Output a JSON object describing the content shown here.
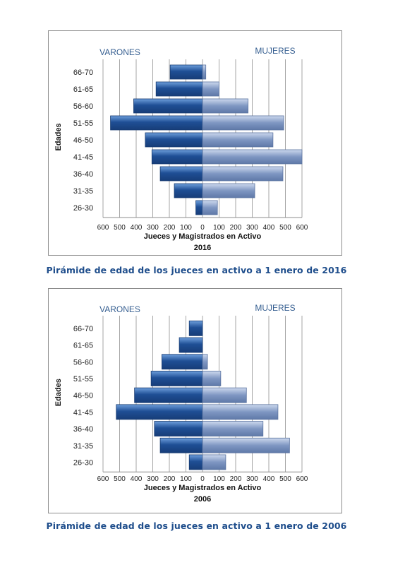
{
  "chart_data": [
    {
      "type": "bar",
      "orientation": "horizontal-pyramid",
      "categories": [
        "26-30",
        "31-35",
        "36-40",
        "41-45",
        "46-50",
        "51-55",
        "56-60",
        "61-65",
        "66-70"
      ],
      "series": [
        {
          "name": "VARONES",
          "values": [
            40,
            170,
            255,
            305,
            345,
            555,
            415,
            280,
            195
          ]
        },
        {
          "name": "MUJERES",
          "values": [
            90,
            315,
            485,
            600,
            425,
            490,
            275,
            100,
            20
          ]
        }
      ],
      "xlabel": "Jueces y Magistrados  en Activo",
      "subtitle": "2016",
      "ylabel": "Edades",
      "xlim": [
        -600,
        600
      ],
      "xticks": [
        "600",
        "500",
        "400",
        "300",
        "200",
        "100",
        "0",
        "100",
        "200",
        "300",
        "400",
        "500",
        "600"
      ],
      "grid": "vertical",
      "caption": "Pirámide de edad de los jueces en activo a 1 enero de 2016"
    },
    {
      "type": "bar",
      "orientation": "horizontal-pyramid",
      "categories": [
        "26-30",
        "31-35",
        "36-40",
        "41-45",
        "46-50",
        "51-55",
        "56-60",
        "61-65",
        "66-70"
      ],
      "series": [
        {
          "name": "VARONES",
          "values": [
            80,
            255,
            290,
            520,
            410,
            310,
            245,
            140,
            80
          ]
        },
        {
          "name": "MUJERES",
          "values": [
            140,
            525,
            365,
            455,
            265,
            110,
            30,
            0,
            0
          ]
        }
      ],
      "xlabel": "Jueces y Magistrados  en Activo",
      "subtitle": "2006",
      "ylabel": "Edades",
      "xlim": [
        -600,
        600
      ],
      "xticks": [
        "600",
        "500",
        "400",
        "300",
        "200",
        "100",
        "0",
        "100",
        "200",
        "300",
        "400",
        "500",
        "600"
      ],
      "grid": "vertical",
      "caption": "Pirámide de edad de los jueces en activo a 1 enero de 2006"
    }
  ],
  "colors": {
    "male_dark": "#1f4f95",
    "male_light": "#6e9fdc",
    "female_dark": "#7e96c2",
    "female_light": "#cdd9ee",
    "header_text": "#365f91",
    "caption_text": "#1f4e8c"
  }
}
